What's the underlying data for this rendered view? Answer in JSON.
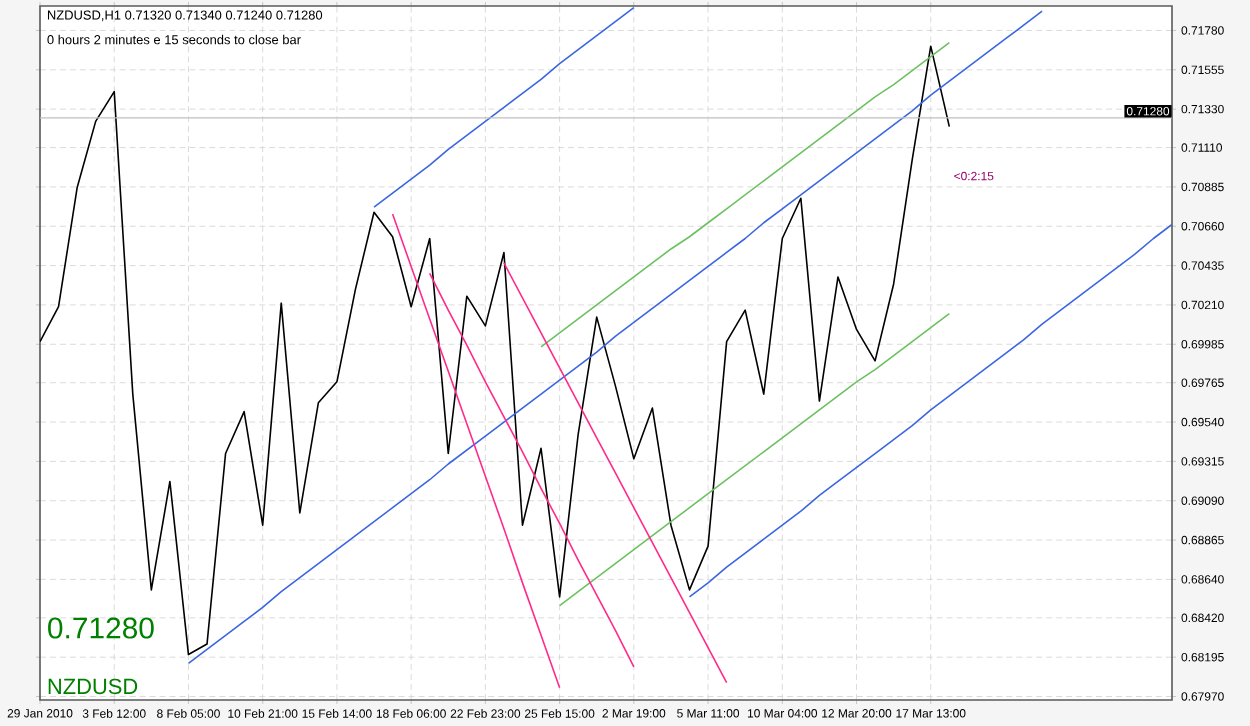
{
  "chart_data": {
    "type": "line",
    "grid": true,
    "categories": [
      "29 Jan 2010",
      null,
      null,
      null,
      "3 Feb 12:00",
      null,
      null,
      null,
      "8 Feb 05:00",
      null,
      null,
      null,
      "10 Feb 21:00",
      null,
      null,
      null,
      "15 Feb 14:00",
      null,
      null,
      null,
      "18 Feb 06:00",
      null,
      null,
      null,
      "22 Feb 23:00",
      null,
      null,
      null,
      "25 Feb 15:00",
      null,
      null,
      null,
      "2 Mar 19:00",
      null,
      null,
      null,
      "5 Mar 11:00",
      null,
      null,
      null,
      "10 Mar 04:00",
      null,
      null,
      null,
      "12 Mar 20:00",
      null,
      null,
      null,
      "17 Mar 13:00",
      null,
      null,
      null,
      null,
      null,
      null,
      null,
      null,
      null,
      null,
      null,
      null,
      null
    ],
    "ylim": [
      0.6795,
      0.7192
    ],
    "yticks": [
      {
        "value": 0.7178,
        "label": "0.71780"
      },
      {
        "value": 0.71555,
        "label": "0.71555"
      },
      {
        "value": 0.7133,
        "label": "0.71330"
      },
      {
        "value": 0.7111,
        "label": "0.71110"
      },
      {
        "value": 0.70885,
        "label": "0.70885"
      },
      {
        "value": 0.7066,
        "label": "0.70660"
      },
      {
        "value": 0.70435,
        "label": "0.70435"
      },
      {
        "value": 0.7021,
        "label": "0.70210"
      },
      {
        "value": 0.69985,
        "label": "0.69985"
      },
      {
        "value": 0.69765,
        "label": "0.69765"
      },
      {
        "value": 0.6954,
        "label": "0.69540"
      },
      {
        "value": 0.69315,
        "label": "0.69315"
      },
      {
        "value": 0.6909,
        "label": "0.69090"
      },
      {
        "value": 0.68865,
        "label": "0.68865"
      },
      {
        "value": 0.6864,
        "label": "0.68640"
      },
      {
        "value": 0.6842,
        "label": "0.68420"
      },
      {
        "value": 0.68195,
        "label": "0.68195"
      },
      {
        "value": 0.6797,
        "label": "0.67970"
      }
    ],
    "series": [
      {
        "color": "#000000",
        "values": [
          0.7,
          0.702,
          0.7088,
          0.7126,
          0.7143,
          0.697,
          0.6858,
          0.692,
          0.6821,
          0.6827,
          0.6936,
          0.696,
          0.6895,
          0.7022,
          0.6902,
          0.6965,
          0.6977,
          0.703,
          0.7074,
          0.706,
          0.702,
          0.7059,
          0.6936,
          0.7026,
          0.7009,
          0.7051,
          0.6895,
          0.6939,
          0.6854,
          0.6947,
          0.7014,
          0.6975,
          0.6933,
          0.6962,
          0.6895,
          0.6858,
          0.6883,
          0.7,
          0.7018,
          0.697,
          0.7059,
          0.7082,
          0.6966,
          0.7037,
          0.7007,
          0.6989,
          0.7033,
          0.7104,
          0.7169,
          0.7123,
          null,
          null,
          null,
          null,
          null,
          null,
          null,
          null,
          null,
          null,
          null,
          null
        ]
      },
      {
        "color": "#3a66e0",
        "values": [
          null,
          null,
          null,
          null,
          null,
          null,
          null,
          null,
          null,
          null,
          null,
          null,
          null,
          null,
          null,
          null,
          null,
          null,
          0.7077,
          0.7085,
          0.7093,
          0.7101,
          0.711,
          0.7118,
          0.7126,
          0.7134,
          0.7142,
          0.715,
          0.7159,
          0.7167,
          0.7175,
          0.7183,
          0.7191,
          null,
          null,
          null,
          null,
          null,
          null,
          null,
          null,
          null,
          null,
          null,
          null,
          null,
          null,
          null,
          null,
          null,
          null,
          null,
          null,
          null,
          null,
          null,
          null,
          null,
          null,
          null,
          null,
          null
        ]
      },
      {
        "color": "#3a66e0",
        "values": [
          null,
          null,
          null,
          null,
          null,
          null,
          null,
          null,
          0.6816,
          0.6824,
          0.6832,
          0.684,
          0.6848,
          0.6857,
          0.6865,
          0.6873,
          0.6881,
          0.6889,
          0.6897,
          0.6905,
          0.6913,
          0.6921,
          0.693,
          0.6938,
          0.6946,
          0.6954,
          0.6962,
          0.697,
          0.6978,
          0.6986,
          0.6994,
          0.7003,
          0.7011,
          0.7019,
          0.7027,
          0.7035,
          0.7043,
          0.7051,
          0.7059,
          0.7068,
          0.7076,
          0.7084,
          0.7092,
          0.71,
          0.7108,
          0.7116,
          0.7124,
          0.7132,
          0.7141,
          0.7149,
          0.7157,
          0.7165,
          0.7173,
          0.7181,
          0.7189,
          null,
          null,
          null,
          null,
          null,
          null,
          null
        ]
      },
      {
        "color": "#3a66e0",
        "values": [
          null,
          null,
          null,
          null,
          null,
          null,
          null,
          null,
          null,
          null,
          null,
          null,
          null,
          null,
          null,
          null,
          null,
          null,
          null,
          null,
          null,
          null,
          null,
          null,
          null,
          null,
          null,
          null,
          null,
          null,
          null,
          null,
          null,
          null,
          null,
          0.6854,
          0.6862,
          0.6871,
          0.6879,
          0.6887,
          0.6895,
          0.6903,
          0.6912,
          0.692,
          0.6928,
          0.6936,
          0.6944,
          0.6952,
          0.6961,
          0.6969,
          0.6977,
          0.6985,
          0.6993,
          0.7001,
          0.701,
          0.7018,
          0.7026,
          0.7034,
          0.7042,
          0.705,
          0.7059,
          0.7067
        ]
      },
      {
        "color": "#6cc060",
        "values": [
          null,
          null,
          null,
          null,
          null,
          null,
          null,
          null,
          null,
          null,
          null,
          null,
          null,
          null,
          null,
          null,
          null,
          null,
          null,
          null,
          null,
          null,
          null,
          null,
          null,
          null,
          null,
          0.6997,
          0.7005,
          0.7013,
          0.7021,
          0.7029,
          0.7037,
          0.7045,
          0.7053,
          0.706,
          0.7068,
          0.7076,
          0.7084,
          0.7092,
          0.71,
          0.7108,
          0.7116,
          0.7124,
          0.7132,
          0.714,
          0.7147,
          0.7155,
          0.7163,
          0.7171,
          null,
          null,
          null,
          null,
          null,
          null,
          null,
          null,
          null,
          null,
          null,
          null
        ]
      },
      {
        "color": "#6cc060",
        "values": [
          null,
          null,
          null,
          null,
          null,
          null,
          null,
          null,
          null,
          null,
          null,
          null,
          null,
          null,
          null,
          null,
          null,
          null,
          null,
          null,
          null,
          null,
          null,
          null,
          null,
          null,
          null,
          null,
          0.6849,
          0.6857,
          0.6865,
          0.6873,
          0.6881,
          0.6889,
          0.6897,
          0.6905,
          0.6913,
          0.6921,
          0.6929,
          0.6937,
          0.6945,
          0.6953,
          0.6961,
          0.6969,
          0.6977,
          0.6984,
          0.6992,
          0.7,
          0.7008,
          0.7016,
          null,
          null,
          null,
          null,
          null,
          null,
          null,
          null,
          null,
          null,
          null,
          null
        ]
      },
      {
        "color": "#ff2a8a",
        "values": [
          null,
          null,
          null,
          null,
          null,
          null,
          null,
          null,
          null,
          null,
          null,
          null,
          null,
          null,
          null,
          null,
          null,
          null,
          null,
          0.7073,
          0.7043,
          0.7013,
          0.6983,
          0.6953,
          0.6923,
          0.6893,
          0.6862,
          0.6832,
          0.6802,
          null,
          null,
          null,
          null,
          null,
          null,
          null,
          null,
          null,
          null,
          null,
          null,
          null,
          null,
          null,
          null,
          null,
          null,
          null,
          null,
          null,
          null,
          null,
          null,
          null,
          null,
          null,
          null,
          null,
          null,
          null,
          null,
          null
        ]
      },
      {
        "color": "#ff2a8a",
        "values": [
          null,
          null,
          null,
          null,
          null,
          null,
          null,
          null,
          null,
          null,
          null,
          null,
          null,
          null,
          null,
          null,
          null,
          null,
          null,
          null,
          null,
          null,
          null,
          null,
          null,
          0.7045,
          0.7025,
          0.7005,
          0.6985,
          0.6965,
          0.6945,
          0.6925,
          0.6905,
          0.6885,
          0.6865,
          0.6845,
          0.6825,
          0.6805,
          null,
          null,
          null,
          null,
          null,
          null,
          null,
          null,
          null,
          null,
          null,
          null,
          null,
          null,
          null,
          null,
          null,
          null,
          null,
          null,
          null,
          null,
          null,
          null
        ]
      },
      {
        "color": "#ff2a8a",
        "values": [
          null,
          null,
          null,
          null,
          null,
          null,
          null,
          null,
          null,
          null,
          null,
          null,
          null,
          null,
          null,
          null,
          null,
          null,
          null,
          null,
          null,
          0.7039,
          0.7018,
          0.6998,
          0.6977,
          0.6957,
          0.6937,
          0.6916,
          0.6896,
          0.6875,
          0.6855,
          0.6835,
          0.6814,
          null,
          null,
          null,
          null,
          null,
          null,
          null,
          null,
          null,
          null,
          null,
          null,
          null,
          null,
          null,
          null,
          null,
          null,
          null,
          null,
          null,
          null,
          null,
          null,
          null,
          null,
          null,
          null,
          null
        ]
      }
    ],
    "ref_lines": [
      {
        "axis": "y",
        "value": 0.7128,
        "label": "0.71280",
        "color": "#c0c0c0"
      }
    ],
    "annotations": [
      "NZDUSD,H1  0.71320 0.71340 0.71240 0.71280",
      "0 hours 2 minutes e 15 seconds to close bar",
      "0.71280",
      "NZDUSD",
      "<0:2:15"
    ]
  }
}
